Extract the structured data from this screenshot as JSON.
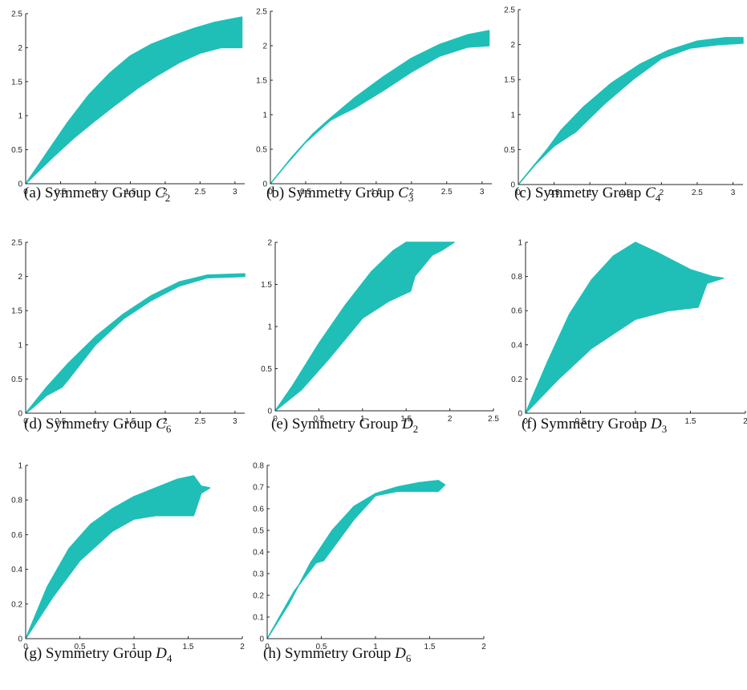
{
  "accent_color": "#1fbfb8",
  "chart_data": [
    {
      "type": "scatter",
      "caption_prefix": "(a) Symmetry Group ",
      "caption_symbol": "C",
      "caption_sub": "2",
      "xlim": [
        0,
        3.14
      ],
      "ylim": [
        0,
        2.5
      ],
      "xticks": [
        0,
        0.5,
        1,
        1.5,
        2,
        2.5,
        3
      ],
      "yticks": [
        0,
        0.5,
        1,
        1.5,
        2,
        2.5
      ],
      "upper": [
        [
          0,
          0
        ],
        [
          0.3,
          0.45
        ],
        [
          0.6,
          0.9
        ],
        [
          0.9,
          1.3
        ],
        [
          1.2,
          1.62
        ],
        [
          1.5,
          1.88
        ],
        [
          1.8,
          2.05
        ],
        [
          2.1,
          2.17
        ],
        [
          2.4,
          2.28
        ],
        [
          2.7,
          2.37
        ],
        [
          3.0,
          2.43
        ],
        [
          3.1,
          2.45
        ]
      ],
      "lower": [
        [
          3.1,
          2.0
        ],
        [
          2.8,
          2.0
        ],
        [
          2.5,
          1.92
        ],
        [
          2.2,
          1.78
        ],
        [
          1.9,
          1.6
        ],
        [
          1.6,
          1.4
        ],
        [
          1.3,
          1.17
        ],
        [
          1.0,
          0.93
        ],
        [
          0.7,
          0.68
        ],
        [
          0.4,
          0.4
        ],
        [
          0.2,
          0.2
        ],
        [
          0,
          0
        ]
      ]
    },
    {
      "type": "scatter",
      "caption_prefix": "(b) Symmetry Group ",
      "caption_symbol": "C",
      "caption_sub": "3",
      "xlim": [
        0,
        3.14
      ],
      "ylim": [
        0,
        2.5
      ],
      "xticks": [
        0,
        0.5,
        1,
        1.5,
        2,
        2.5,
        3
      ],
      "yticks": [
        0,
        0.5,
        1,
        1.5,
        2,
        2.5
      ],
      "upper": [
        [
          0,
          0
        ],
        [
          0.3,
          0.38
        ],
        [
          0.6,
          0.72
        ],
        [
          0.85,
          0.95
        ],
        [
          1.2,
          1.25
        ],
        [
          1.6,
          1.55
        ],
        [
          2.0,
          1.82
        ],
        [
          2.4,
          2.02
        ],
        [
          2.8,
          2.16
        ],
        [
          3.1,
          2.22
        ]
      ],
      "lower": [
        [
          3.1,
          2.0
        ],
        [
          2.8,
          1.98
        ],
        [
          2.4,
          1.85
        ],
        [
          2.0,
          1.62
        ],
        [
          1.6,
          1.35
        ],
        [
          1.2,
          1.1
        ],
        [
          1.0,
          1.0
        ],
        [
          0.85,
          0.92
        ],
        [
          0.5,
          0.6
        ],
        [
          0.2,
          0.25
        ],
        [
          0,
          0
        ]
      ]
    },
    {
      "type": "scatter",
      "caption_prefix": "(c) Symmetry Group ",
      "caption_symbol": "C",
      "caption_sub": "4",
      "xlim": [
        0,
        3.14
      ],
      "ylim": [
        0,
        2.5
      ],
      "xticks": [
        0,
        0.5,
        1,
        1.5,
        2,
        2.5,
        3
      ],
      "yticks": [
        0,
        0.5,
        1,
        1.5,
        2,
        2.5
      ],
      "upper": [
        [
          0,
          0
        ],
        [
          0.2,
          0.25
        ],
        [
          0.4,
          0.5
        ],
        [
          0.6,
          0.78
        ],
        [
          0.9,
          1.1
        ],
        [
          1.3,
          1.45
        ],
        [
          1.7,
          1.72
        ],
        [
          2.1,
          1.92
        ],
        [
          2.5,
          2.05
        ],
        [
          2.9,
          2.1
        ],
        [
          3.14,
          2.1
        ]
      ],
      "lower": [
        [
          3.14,
          2.02
        ],
        [
          2.8,
          2.0
        ],
        [
          2.4,
          1.95
        ],
        [
          2.0,
          1.8
        ],
        [
          1.6,
          1.5
        ],
        [
          1.2,
          1.15
        ],
        [
          0.8,
          0.75
        ],
        [
          0.75,
          0.72
        ],
        [
          0.5,
          0.55
        ],
        [
          0.25,
          0.3
        ],
        [
          0,
          0
        ]
      ]
    },
    {
      "type": "scatter",
      "caption_prefix": "(d) Symmetry Group ",
      "caption_symbol": "C",
      "caption_sub": "6",
      "xlim": [
        0,
        3.14
      ],
      "ylim": [
        0,
        2.5
      ],
      "xticks": [
        0,
        0.5,
        1,
        1.5,
        2,
        2.5,
        3
      ],
      "yticks": [
        0,
        0.5,
        1,
        1.5,
        2,
        2.5
      ],
      "upper": [
        [
          0,
          0
        ],
        [
          0.3,
          0.38
        ],
        [
          0.6,
          0.72
        ],
        [
          1.0,
          1.12
        ],
        [
          1.4,
          1.45
        ],
        [
          1.8,
          1.72
        ],
        [
          2.2,
          1.92
        ],
        [
          2.6,
          2.02
        ],
        [
          3.14,
          2.04
        ]
      ],
      "lower": [
        [
          3.14,
          2.0
        ],
        [
          2.6,
          1.98
        ],
        [
          2.2,
          1.86
        ],
        [
          1.8,
          1.65
        ],
        [
          1.4,
          1.38
        ],
        [
          1.0,
          1.0
        ],
        [
          0.6,
          0.48
        ],
        [
          0.52,
          0.38
        ],
        [
          0.3,
          0.26
        ],
        [
          0.1,
          0.08
        ],
        [
          0,
          0
        ]
      ]
    },
    {
      "type": "scatter",
      "caption_prefix": "(e) Symmetry Group ",
      "caption_symbol": "D",
      "caption_sub": "2",
      "xlim": [
        0,
        2.5
      ],
      "ylim": [
        0,
        2
      ],
      "xticks": [
        0,
        0.5,
        1,
        1.5,
        2,
        2.5
      ],
      "yticks": [
        0,
        0.5,
        1,
        1.5,
        2
      ],
      "upper": [
        [
          0,
          0
        ],
        [
          0.2,
          0.3
        ],
        [
          0.5,
          0.8
        ],
        [
          0.8,
          1.25
        ],
        [
          1.1,
          1.65
        ],
        [
          1.35,
          1.9
        ],
        [
          1.5,
          2.0
        ],
        [
          2.05,
          2.0
        ]
      ],
      "lower": [
        [
          2.05,
          2.0
        ],
        [
          1.9,
          1.9
        ],
        [
          1.8,
          1.85
        ],
        [
          1.6,
          1.6
        ],
        [
          1.55,
          1.42
        ],
        [
          1.3,
          1.3
        ],
        [
          1.0,
          1.1
        ],
        [
          0.6,
          0.6
        ],
        [
          0.3,
          0.25
        ],
        [
          0,
          0
        ]
      ]
    },
    {
      "type": "scatter",
      "caption_prefix": "(f) Symmetry Group ",
      "caption_symbol": "D",
      "caption_sub": "3",
      "xlim": [
        0,
        2
      ],
      "ylim": [
        0,
        1
      ],
      "xticks": [
        0,
        0.5,
        1,
        1.5,
        2
      ],
      "yticks": [
        0,
        0.2,
        0.4,
        0.6,
        0.8,
        1
      ],
      "upper": [
        [
          0,
          0
        ],
        [
          0.2,
          0.3
        ],
        [
          0.4,
          0.58
        ],
        [
          0.6,
          0.78
        ],
        [
          0.8,
          0.92
        ],
        [
          1.0,
          1.0
        ],
        [
          1.2,
          0.94
        ],
        [
          1.5,
          0.84
        ],
        [
          1.7,
          0.8
        ],
        [
          1.8,
          0.79
        ]
      ],
      "lower": [
        [
          1.8,
          0.79
        ],
        [
          1.65,
          0.76
        ],
        [
          1.57,
          0.62
        ],
        [
          1.3,
          0.6
        ],
        [
          1.0,
          0.55
        ],
        [
          0.6,
          0.38
        ],
        [
          0.3,
          0.2
        ],
        [
          0,
          0
        ]
      ]
    },
    {
      "type": "scatter",
      "caption_prefix": "(g) Symmetry Group ",
      "caption_symbol": "D",
      "caption_sub": "4",
      "xlim": [
        0,
        2
      ],
      "ylim": [
        0,
        1
      ],
      "xticks": [
        0,
        0.5,
        1,
        1.5,
        2
      ],
      "yticks": [
        0,
        0.2,
        0.4,
        0.6,
        0.8,
        1
      ],
      "upper": [
        [
          0,
          0
        ],
        [
          0.2,
          0.3
        ],
        [
          0.4,
          0.52
        ],
        [
          0.6,
          0.66
        ],
        [
          0.8,
          0.75
        ],
        [
          1.0,
          0.82
        ],
        [
          1.2,
          0.87
        ],
        [
          1.4,
          0.92
        ],
        [
          1.55,
          0.94
        ],
        [
          1.62,
          0.88
        ],
        [
          1.7,
          0.87
        ]
      ],
      "lower": [
        [
          1.7,
          0.87
        ],
        [
          1.62,
          0.84
        ],
        [
          1.55,
          0.71
        ],
        [
          1.2,
          0.71
        ],
        [
          1.0,
          0.69
        ],
        [
          0.8,
          0.62
        ],
        [
          0.5,
          0.45
        ],
        [
          0.25,
          0.24
        ],
        [
          0,
          0
        ]
      ]
    },
    {
      "type": "scatter",
      "caption_prefix": "(h) Symmetry Group ",
      "caption_symbol": "D",
      "caption_sub": "6",
      "xlim": [
        0,
        2
      ],
      "ylim": [
        0,
        0.8
      ],
      "xticks": [
        0,
        0.5,
        1,
        1.5,
        2
      ],
      "yticks": [
        0,
        0.1,
        0.2,
        0.3,
        0.4,
        0.5,
        0.6,
        0.7,
        0.8
      ],
      "upper": [
        [
          0,
          0
        ],
        [
          0.2,
          0.16
        ],
        [
          0.4,
          0.35
        ],
        [
          0.6,
          0.5
        ],
        [
          0.8,
          0.61
        ],
        [
          1.0,
          0.67
        ],
        [
          1.2,
          0.7
        ],
        [
          1.4,
          0.72
        ],
        [
          1.58,
          0.73
        ],
        [
          1.64,
          0.71
        ]
      ],
      "lower": [
        [
          1.64,
          0.71
        ],
        [
          1.58,
          0.68
        ],
        [
          1.2,
          0.68
        ],
        [
          1.0,
          0.66
        ],
        [
          0.8,
          0.55
        ],
        [
          0.52,
          0.36
        ],
        [
          0.45,
          0.35
        ],
        [
          0.25,
          0.22
        ],
        [
          0,
          0
        ]
      ]
    }
  ]
}
